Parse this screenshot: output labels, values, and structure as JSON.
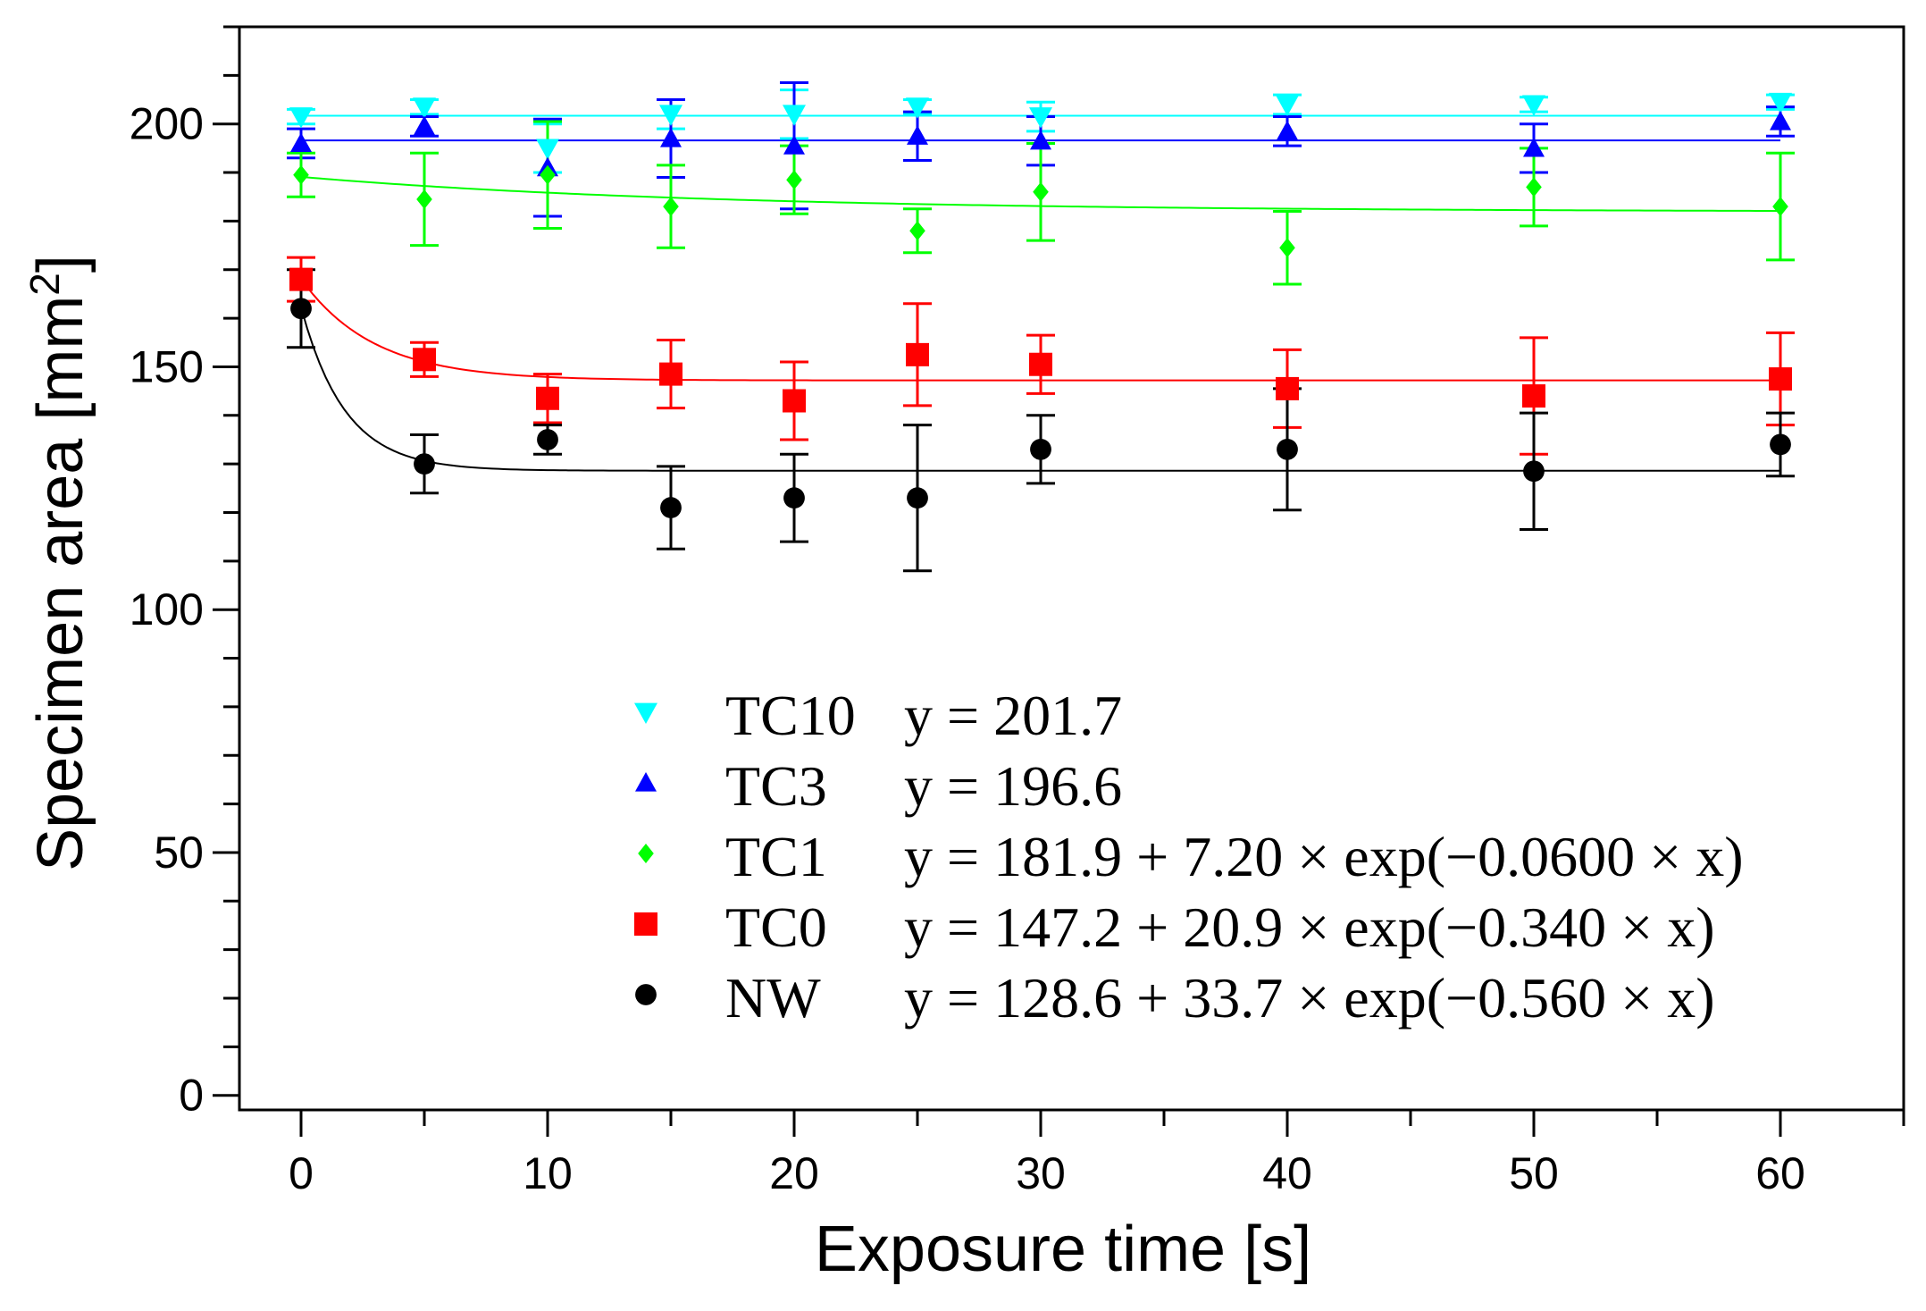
{
  "chart_data": {
    "type": "scatter",
    "title": "",
    "xlabel": "Exposure time [s]",
    "ylabel_main": "Specimen area [mm",
    "ylabel_sup": "2",
    "ylabel_close": "]",
    "xlim": [
      -2.5,
      65
    ],
    "ylim": [
      -3,
      220
    ],
    "xticks": [
      0,
      10,
      20,
      30,
      40,
      50,
      60
    ],
    "xtick_labels": [
      "0",
      "10",
      "20",
      "30",
      "40",
      "50",
      "60"
    ],
    "yticks": [
      0,
      50,
      100,
      150,
      200
    ],
    "ytick_labels": [
      "0",
      "50",
      "100",
      "150",
      "200"
    ],
    "x": [
      0,
      5,
      10,
      15,
      20,
      25,
      30,
      40,
      50,
      60
    ],
    "grid": false,
    "legend_position": "bottom-center",
    "series": [
      {
        "name": "TC10",
        "marker": "triangle-down",
        "color": "#00ffff",
        "equation": "y = 201.7",
        "fit": {
          "a": 201.7,
          "b": 0,
          "k": 0
        },
        "values": [
          201.5,
          203.5,
          195,
          202,
          202,
          203.5,
          201.5,
          204,
          204,
          204.5
        ],
        "errors": [
          1.5,
          1.5,
          5,
          3,
          5,
          1.5,
          3,
          2,
          1.5,
          1.5
        ]
      },
      {
        "name": "TC3",
        "marker": "triangle-up",
        "color": "#0000ff",
        "equation": "y = 196.6",
        "fit": {
          "a": 196.6,
          "b": 0,
          "k": 0
        },
        "values": [
          196,
          199.5,
          191,
          197,
          195.5,
          197.5,
          196.5,
          198.5,
          195,
          200.5
        ],
        "errors": [
          3,
          2,
          10,
          8,
          13,
          5,
          5,
          3,
          5,
          3
        ]
      },
      {
        "name": "TC1",
        "marker": "diamond",
        "color": "#00ff00",
        "equation": "y = 181.9 + 7.20 × exp(−0.0600 × x)",
        "fit": {
          "a": 181.9,
          "b": 7.2,
          "k": 0.06
        },
        "values": [
          189.5,
          184.5,
          189.5,
          183,
          188.5,
          178,
          186,
          174.5,
          187,
          183
        ],
        "errors": [
          4.5,
          9.5,
          11,
          8.5,
          7,
          4.5,
          10,
          7.5,
          8,
          11
        ]
      },
      {
        "name": "TC0",
        "marker": "square",
        "color": "#ff0000",
        "equation": "y = 147.2 + 20.9 × exp(−0.340 × x)",
        "fit": {
          "a": 147.2,
          "b": 20.9,
          "k": 0.34
        },
        "values": [
          168,
          151.5,
          143.5,
          148.5,
          143,
          152.5,
          150.5,
          145.5,
          144,
          147.5
        ],
        "errors": [
          4.5,
          3.5,
          5,
          7,
          8,
          10.5,
          6,
          8,
          12,
          9.5
        ]
      },
      {
        "name": "NW",
        "marker": "circle",
        "color": "#000000",
        "equation": "y = 128.6 + 33.7 × exp(−0.560 × x)",
        "fit": {
          "a": 128.6,
          "b": 33.7,
          "k": 0.56
        },
        "values": [
          162,
          130,
          135,
          121,
          123,
          123,
          133,
          133,
          128.5,
          134
        ],
        "errors": [
          8,
          6,
          3,
          8.5,
          9,
          15,
          7,
          12.5,
          12,
          6.5
        ]
      }
    ]
  }
}
